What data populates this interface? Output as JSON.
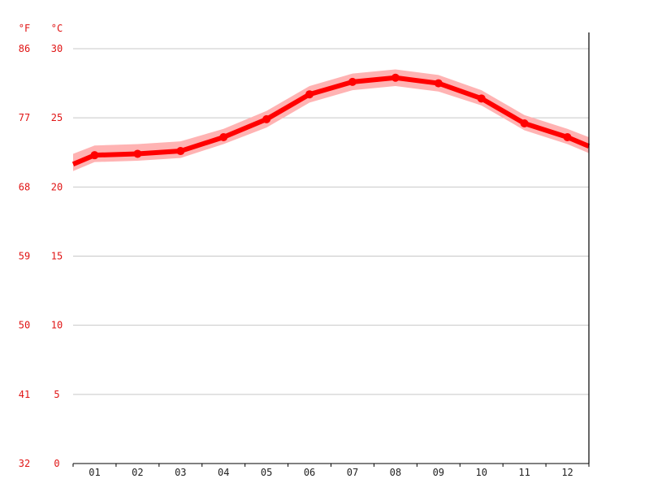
{
  "chart_data": {
    "type": "line",
    "title": "",
    "xlabel": "",
    "ylabel": "",
    "unit_left": "°F",
    "unit_right": "°C",
    "categories": [
      "01",
      "02",
      "03",
      "04",
      "05",
      "06",
      "07",
      "08",
      "09",
      "10",
      "11",
      "12"
    ],
    "ylim_c": [
      0,
      30
    ],
    "yticks_c": [
      "0",
      "5",
      "10",
      "15",
      "20",
      "25",
      "30"
    ],
    "yticks_f": [
      "32",
      "41",
      "50",
      "59",
      "68",
      "77",
      "86"
    ],
    "series": [
      {
        "values": [
          22.3,
          22.4,
          22.6,
          23.6,
          24.9,
          26.7,
          27.6,
          27.9,
          27.5,
          26.4,
          24.6,
          23.6
        ],
        "band_low": [
          21.8,
          21.9,
          22.1,
          23.1,
          24.3,
          26.1,
          27.0,
          27.3,
          26.9,
          25.9,
          24.1,
          23.1
        ],
        "band_high": [
          23.0,
          23.1,
          23.3,
          24.2,
          25.5,
          27.3,
          28.2,
          28.5,
          28.1,
          27.0,
          25.2,
          24.2
        ],
        "color": "#ff0000",
        "band_color": "#ffb3b3"
      }
    ],
    "grid": true,
    "colors": {
      "axis_label": "#e01414",
      "month_label": "#222222",
      "grid": "#c8c8c8",
      "axis_line": "#000000"
    }
  }
}
